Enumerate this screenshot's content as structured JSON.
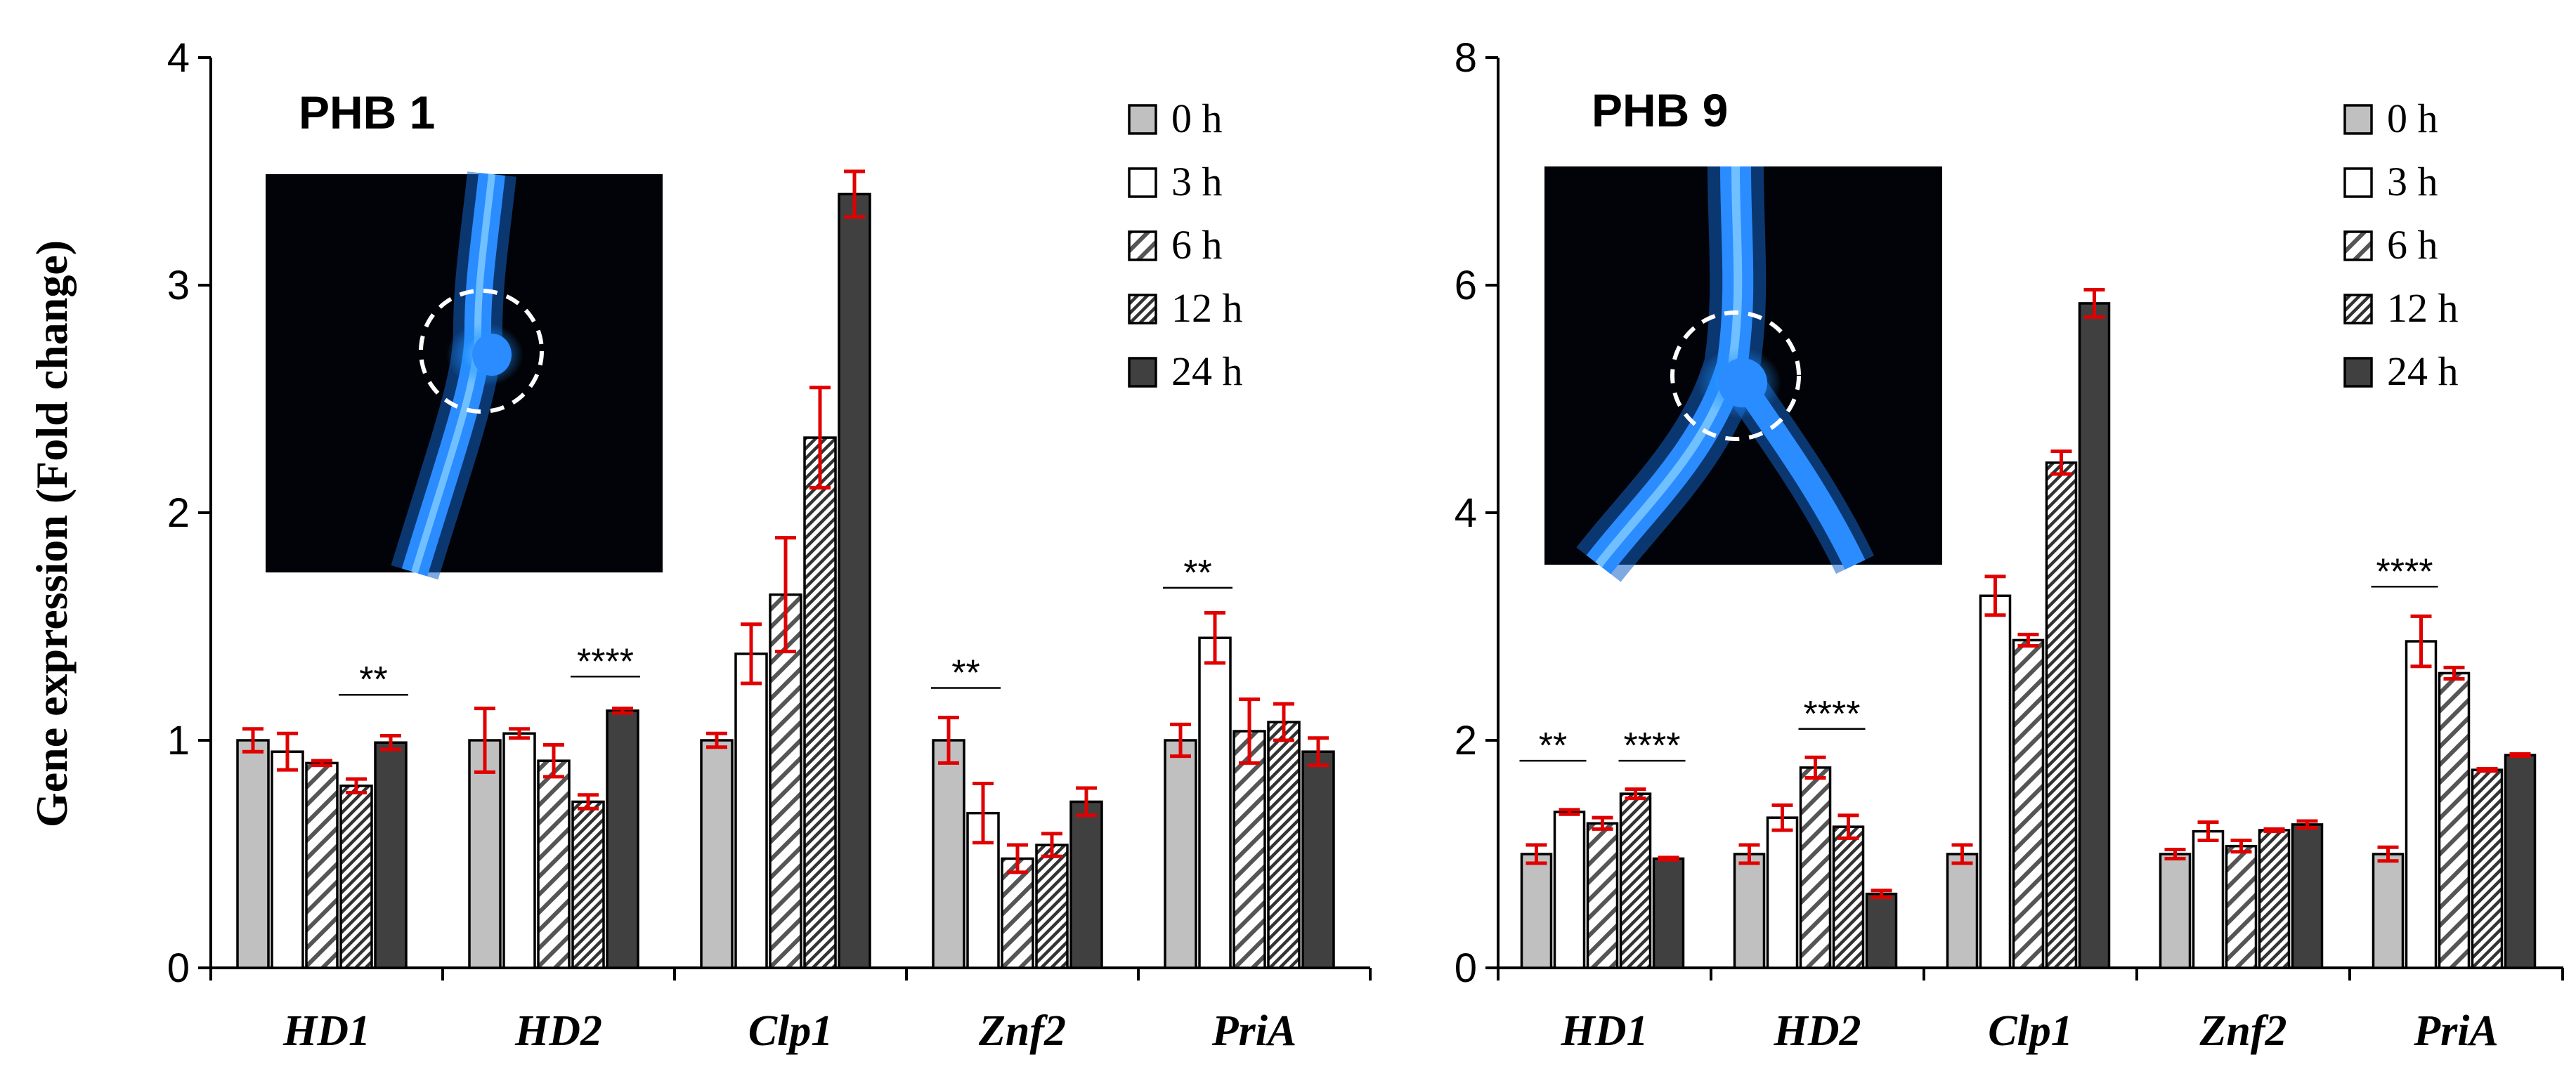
{
  "y_axis_label": "Gene expression (Fold change)",
  "legend": [
    {
      "label": "0 h",
      "fill": "#c0c0c0",
      "pattern": "solid"
    },
    {
      "label": "3 h",
      "fill": "#ffffff",
      "pattern": "solid"
    },
    {
      "label": "6 h",
      "fill": "#ffffff",
      "pattern": "diag-wide"
    },
    {
      "label": "12 h",
      "fill": "#ffffff",
      "pattern": "diag-dense"
    },
    {
      "label": "24 h",
      "fill": "#404040",
      "pattern": "solid"
    }
  ],
  "colors": {
    "error_bar": "#e00000",
    "inset_background": "#020308",
    "inset_hypha": "#1e90ff"
  },
  "chart_data": [
    {
      "type": "bar",
      "title": "PHB 1",
      "ylabel": "Gene expression (Fold change)",
      "ylim": [
        0,
        4
      ],
      "yticks": [
        0,
        1,
        2,
        3,
        4
      ],
      "categories": [
        "HD1",
        "HD2",
        "Clp1",
        "Znf2",
        "PriA"
      ],
      "series": [
        {
          "name": "0 h",
          "values": [
            1.0,
            1.0,
            1.0,
            1.0,
            1.0
          ],
          "errors": [
            0.05,
            0.14,
            0.03,
            0.1,
            0.07
          ]
        },
        {
          "name": "3 h",
          "values": [
            0.95,
            1.03,
            1.38,
            0.68,
            1.45
          ],
          "errors": [
            0.08,
            0.02,
            0.13,
            0.13,
            0.11
          ]
        },
        {
          "name": "6 h",
          "values": [
            0.9,
            0.91,
            1.64,
            0.48,
            1.04
          ],
          "errors": [
            0.01,
            0.07,
            0.25,
            0.06,
            0.14
          ]
        },
        {
          "name": "12 h",
          "values": [
            0.8,
            0.73,
            2.33,
            0.54,
            1.08
          ],
          "errors": [
            0.03,
            0.03,
            0.22,
            0.05,
            0.08
          ]
        },
        {
          "name": "24 h",
          "values": [
            0.99,
            1.13,
            3.4,
            0.73,
            0.95
          ],
          "errors": [
            0.03,
            0.01,
            0.1,
            0.06,
            0.06
          ]
        }
      ],
      "significance": [
        {
          "label": "**",
          "category": 0,
          "from_series": 3,
          "to_series": 4,
          "level": 1.2
        },
        {
          "label": "****",
          "category": 1,
          "from_series": 3,
          "to_series": 4,
          "level": 1.28
        },
        {
          "label": "**",
          "category": 3,
          "from_series": 0,
          "to_series": 1,
          "level": 1.23
        },
        {
          "label": "**",
          "category": 4,
          "from_series": 0,
          "to_series": 1,
          "level": 1.67
        }
      ]
    },
    {
      "type": "bar",
      "title": "PHB 9",
      "ylabel": "",
      "ylim": [
        0,
        8
      ],
      "yticks": [
        0,
        2,
        4,
        6,
        8
      ],
      "categories": [
        "HD1",
        "HD2",
        "Clp1",
        "Znf2",
        "PriA"
      ],
      "series": [
        {
          "name": "0 h",
          "values": [
            1.0,
            1.0,
            1.0,
            1.0,
            1.0
          ],
          "errors": [
            0.08,
            0.08,
            0.08,
            0.04,
            0.06
          ]
        },
        {
          "name": "3 h",
          "values": [
            1.37,
            1.32,
            3.27,
            1.2,
            2.87
          ],
          "errors": [
            0.02,
            0.11,
            0.17,
            0.08,
            0.22
          ]
        },
        {
          "name": "6 h",
          "values": [
            1.27,
            1.76,
            2.88,
            1.07,
            2.59
          ],
          "errors": [
            0.05,
            0.09,
            0.05,
            0.05,
            0.05
          ]
        },
        {
          "name": "12 h",
          "values": [
            1.53,
            1.24,
            4.44,
            1.21,
            1.74
          ],
          "errors": [
            0.04,
            0.1,
            0.1,
            0.01,
            0.01
          ]
        },
        {
          "name": "24 h",
          "values": [
            0.96,
            0.65,
            5.84,
            1.26,
            1.87
          ],
          "errors": [
            0.01,
            0.03,
            0.12,
            0.03,
            0.01
          ]
        }
      ],
      "significance": [
        {
          "label": "**",
          "category": 0,
          "from_series": 0,
          "to_series": 1,
          "level": 1.82
        },
        {
          "label": "****",
          "category": 0,
          "from_series": 3,
          "to_series": 4,
          "level": 1.82
        },
        {
          "label": "****",
          "category": 1,
          "from_series": 2,
          "to_series": 3,
          "level": 2.1
        },
        {
          "label": "****",
          "category": 4,
          "from_series": 0,
          "to_series": 1,
          "level": 3.35
        }
      ]
    }
  ]
}
